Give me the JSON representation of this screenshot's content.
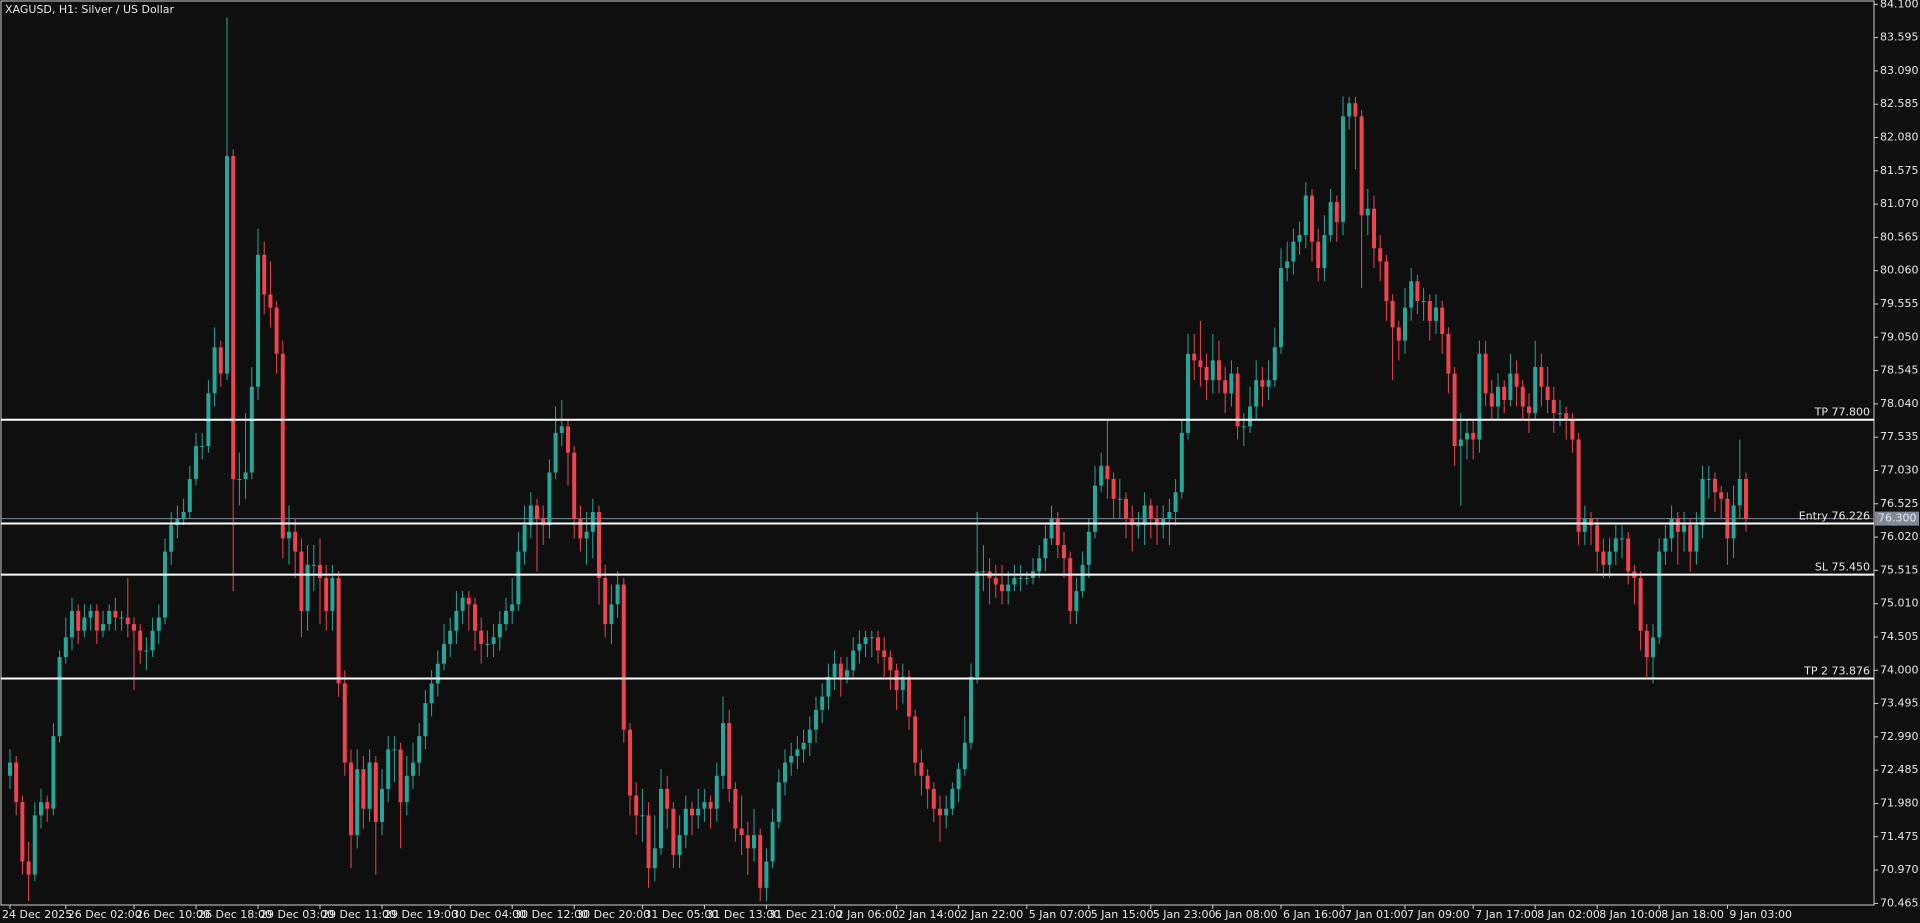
{
  "chart_data": {
    "type": "candlestick",
    "title": "XAGUSD, H1:  Silver / US Dollar",
    "up_color": "#26a69a",
    "down_color": "#ef4350",
    "ylim": [
      70.44,
      84.12
    ],
    "yticks": [
      {
        "value": 84.1,
        "label": "84.100"
      },
      83.595,
      {
        "value": 83.09,
        "label": "83.090"
      },
      82.585,
      {
        "value": 82.08,
        "label": "82.080"
      },
      81.575,
      {
        "value": 81.07,
        "label": "81.070"
      },
      80.565,
      {
        "value": 80.06,
        "label": "80.060"
      },
      79.555,
      {
        "value": 79.05,
        "label": "79.050"
      },
      78.545,
      {
        "value": 78.04,
        "label": "78.040"
      },
      77.535,
      {
        "value": 77.03,
        "label": "77.030"
      },
      76.525,
      {
        "value": 76.02,
        "label": "76.020"
      },
      75.515,
      {
        "value": 75.01,
        "label": "75.010"
      },
      74.505,
      {
        "value": 74.0,
        "label": "74.000"
      },
      73.495,
      {
        "value": 72.99,
        "label": "72.990"
      },
      72.485,
      {
        "value": 71.98,
        "label": "71.980"
      },
      71.475,
      {
        "value": 70.97,
        "label": "70.970"
      },
      70.465
    ],
    "levels": [
      {
        "name": "TP 77.800",
        "value": 77.8
      },
      {
        "name": "Entry 76.226",
        "value": 76.226
      },
      {
        "name": "SL 75.450",
        "value": 75.45
      },
      {
        "name": "TP 2 73.876",
        "value": 73.876
      }
    ],
    "bid_line": {
      "value": 76.3,
      "label": "76.300"
    },
    "categories": [
      "24 Dec 2025",
      null,
      null,
      null,
      null,
      null,
      null,
      null,
      null,
      "26 Dec 02:00",
      null,
      null,
      null,
      null,
      null,
      null,
      null,
      null,
      null,
      null,
      "26 Dec 10:00",
      null,
      null,
      null,
      null,
      null,
      null,
      null,
      null,
      null,
      "26 Dec 18:00",
      null,
      null,
      null,
      null,
      null,
      null,
      null,
      null,
      null,
      "29 Dec 03:00",
      null,
      null,
      null,
      null,
      null,
      null,
      null,
      null,
      null,
      "29 Dec 11:00",
      null,
      null,
      null,
      null,
      null,
      null,
      null,
      null,
      null,
      "29 Dec 19:00",
      null,
      null,
      null,
      null,
      null,
      null,
      null,
      null,
      null,
      null,
      "30 Dec 04:00",
      null,
      null,
      null,
      null,
      null,
      null,
      null,
      null,
      null,
      "30 Dec 12:00",
      null,
      null,
      null,
      null,
      null,
      null,
      null,
      null,
      null,
      "30 Dec 20:00",
      null,
      null,
      null,
      null,
      null,
      null,
      null,
      null,
      null,
      null,
      "31 Dec 05:00",
      null,
      null,
      null,
      null,
      null,
      null,
      null,
      null,
      null,
      "31 Dec 13:00",
      null,
      null,
      null,
      null,
      null,
      null,
      null,
      null,
      null,
      "31 Dec 21:00",
      null,
      null,
      null,
      null,
      null,
      null,
      null,
      null,
      null,
      null,
      "2 Jan 06:00",
      null,
      null,
      null,
      null,
      null,
      null,
      null,
      null,
      null,
      "2 Jan 14:00",
      null,
      null,
      null,
      null,
      null,
      null,
      null,
      null,
      null,
      "2 Jan 22:00",
      null,
      null,
      null,
      null,
      null,
      null,
      null,
      null,
      null,
      null,
      "5 Jan 07:00",
      null,
      null,
      null,
      null,
      null,
      null,
      null,
      null,
      null,
      "5 Jan 15:00",
      null,
      null,
      null,
      null,
      null,
      null,
      null,
      null,
      null,
      "5 Jan 23:00",
      null,
      null,
      null,
      null,
      null,
      null,
      null,
      null,
      null,
      "6 Jan 08:00",
      null,
      null,
      null,
      null,
      null,
      null,
      null,
      null,
      null,
      null,
      "6 Jan 16:00",
      null,
      null,
      null,
      null,
      null,
      null,
      null,
      null,
      null,
      "7 Jan 01:00",
      null,
      null,
      null,
      null,
      null,
      null,
      null,
      null,
      null,
      "7 Jan 09:00",
      null,
      null,
      null,
      null,
      null,
      null,
      null,
      null,
      null,
      null,
      "7 Jan 17:00",
      null,
      null,
      null,
      null,
      null,
      null,
      null,
      null,
      null,
      "8 Jan 02:00",
      null,
      null,
      null,
      null,
      null,
      null,
      null,
      null,
      null,
      "8 Jan 10:00",
      null,
      null,
      null,
      null,
      null,
      null,
      null,
      null,
      null,
      "8 Jan 18:00",
      null,
      null,
      null,
      null,
      null,
      null,
      null,
      null,
      null,
      null,
      "9 Jan 03:00",
      null,
      null,
      null
    ],
    "open": [
      72.4,
      72.6,
      72.0,
      71.1,
      70.9,
      71.8,
      72.0,
      71.9,
      73.0,
      74.2,
      74.5,
      74.9,
      74.6,
      74.8,
      74.9,
      74.6,
      74.7,
      74.9,
      74.8,
      74.8,
      74.7,
      74.6,
      74.3,
      74.3,
      74.6,
      74.8,
      75.8,
      76.2,
      76.3,
      76.4,
      76.9,
      77.4,
      77.4,
      78.2,
      78.9,
      78.5,
      81.8,
      76.9,
      76.9,
      77.0,
      78.3,
      80.3,
      79.7,
      79.5,
      78.8,
      76.0,
      76.1,
      75.8,
      74.9,
      75.6,
      75.6,
      75.4,
      74.9,
      75.4,
      73.8,
      72.6,
      71.5,
      72.5,
      71.9,
      72.6,
      71.7,
      72.2,
      72.8,
      72.8,
      72.0,
      72.4,
      72.6,
      73.0,
      73.5,
      73.8,
      74.1,
      74.4,
      74.6,
      74.9,
      75.1,
      75.0,
      74.6,
      74.4,
      74.4,
      74.5,
      74.7,
      74.9,
      75.0,
      75.8,
      76.2,
      76.5,
      76.3,
      76.2,
      77.0,
      77.6,
      77.7,
      77.3,
      76.3,
      76.0,
      76.1,
      76.4,
      75.4,
      74.7,
      75.0,
      75.3,
      73.1,
      72.1,
      71.8,
      71.8,
      71.0,
      71.3,
      72.2,
      71.9,
      71.2,
      71.5,
      71.9,
      71.8,
      71.9,
      72.0,
      71.9,
      72.4,
      73.2,
      72.2,
      71.6,
      71.5,
      71.3,
      71.5,
      70.7,
      71.1,
      71.7,
      72.3,
      72.6,
      72.7,
      72.8,
      72.9,
      73.1,
      73.4,
      73.6,
      73.9,
      74.1,
      73.9,
      74.0,
      74.3,
      74.4,
      74.5,
      74.5,
      74.3,
      74.2,
      74.0,
      73.7,
      73.9,
      73.3,
      72.6,
      72.4,
      72.2,
      71.9,
      71.8,
      71.9,
      72.2,
      72.5,
      72.9,
      73.9,
      75.5,
      75.5,
      75.4,
      75.3,
      75.2,
      75.3,
      75.4,
      75.4,
      75.4,
      75.5,
      75.7,
      76.0,
      76.3,
      75.9,
      75.7,
      74.9,
      75.2,
      75.6,
      76.1,
      76.8,
      77.1,
      76.9,
      76.6,
      76.6,
      76.3,
      76.2,
      76.2,
      76.5,
      76.3,
      76.2,
      76.3,
      76.4,
      76.7,
      77.6,
      78.8,
      78.7,
      78.6,
      78.4,
      78.7,
      78.4,
      78.2,
      78.5,
      77.7,
      77.7,
      78.0,
      78.4,
      78.3,
      78.4,
      78.9,
      80.1,
      80.2,
      80.5,
      80.6,
      81.2,
      80.5,
      80.1,
      80.6,
      81.1,
      80.8,
      82.4,
      82.6,
      82.4,
      80.9,
      81.0,
      80.4,
      80.2,
      79.6,
      79.2,
      79.0,
      79.5,
      79.9,
      79.6,
      79.6,
      79.3,
      79.5,
      79.1,
      78.5,
      77.4,
      77.5,
      77.6,
      77.5,
      78.8,
      78.2,
      78.0,
      78.3,
      78.1,
      78.5,
      78.3,
      78.0,
      77.9,
      78.6,
      78.3,
      78.1,
      77.9,
      77.9,
      77.8,
      77.5,
      76.1,
      76.3,
      76.2,
      75.8,
      75.6,
      75.8,
      76.0,
      76.0,
      75.5,
      75.4,
      74.6,
      74.2,
      74.5,
      75.8,
      76.0,
      76.3,
      76.1,
      76.2,
      75.8,
      76.2,
      76.9,
      76.9,
      76.7,
      76.6,
      76.0,
      76.5,
      76.9
    ],
    "high": [
      72.8,
      72.7,
      72.1,
      71.4,
      72.0,
      72.2,
      72.1,
      73.2,
      74.3,
      74.8,
      75.1,
      75.0,
      75.0,
      75.0,
      75.0,
      74.9,
      75.0,
      75.1,
      74.9,
      75.4,
      74.8,
      74.7,
      74.5,
      74.8,
      75.0,
      76.0,
      76.4,
      76.5,
      76.6,
      77.1,
      77.6,
      77.6,
      78.4,
      79.2,
      79.0,
      83.9,
      81.9,
      77.3,
      77.9,
      78.6,
      80.7,
      80.5,
      80.2,
      79.6,
      79.0,
      76.5,
      76.3,
      76.0,
      75.9,
      75.9,
      76.0,
      75.6,
      75.6,
      75.5,
      74.0,
      72.8,
      72.8,
      72.7,
      72.8,
      72.7,
      72.5,
      73.0,
      73.0,
      72.9,
      72.7,
      72.9,
      73.2,
      73.7,
      74.0,
      74.3,
      74.7,
      74.8,
      75.2,
      75.2,
      75.2,
      75.1,
      74.8,
      74.6,
      74.7,
      74.9,
      75.1,
      75.4,
      76.1,
      76.5,
      76.7,
      76.6,
      76.5,
      77.2,
      78.0,
      78.1,
      77.8,
      77.4,
      76.5,
      76.4,
      76.6,
      76.5,
      75.6,
      75.3,
      75.5,
      75.4,
      73.2,
      72.3,
      72.2,
      72.0,
      71.8,
      72.5,
      72.4,
      72.0,
      71.8,
      72.1,
      72.0,
      72.2,
      72.2,
      72.1,
      72.6,
      73.6,
      73.4,
      72.3,
      72.1,
      71.7,
      71.9,
      71.6,
      71.3,
      71.9,
      72.5,
      72.8,
      72.9,
      73.0,
      73.1,
      73.3,
      73.6,
      73.8,
      74.1,
      74.3,
      74.2,
      74.2,
      74.5,
      74.6,
      74.6,
      74.6,
      74.6,
      74.5,
      74.3,
      74.1,
      74.1,
      74.0,
      73.4,
      72.8,
      72.5,
      72.3,
      72.1,
      72.1,
      72.3,
      72.6,
      73.3,
      74.1,
      76.4,
      75.9,
      75.7,
      75.6,
      75.6,
      75.5,
      75.6,
      75.6,
      75.5,
      75.7,
      75.9,
      76.2,
      76.5,
      76.4,
      76.1,
      75.8,
      75.4,
      75.8,
      76.3,
      77.1,
      77.3,
      77.8,
      77.0,
      76.9,
      76.7,
      76.5,
      76.4,
      76.7,
      76.6,
      76.5,
      76.5,
      76.6,
      76.9,
      77.8,
      79.1,
      79.1,
      79.3,
      78.8,
      79.1,
      79.0,
      78.6,
      78.7,
      78.6,
      77.9,
      78.3,
      78.7,
      78.6,
      78.7,
      79.2,
      80.4,
      80.5,
      80.7,
      80.8,
      81.4,
      81.3,
      80.7,
      80.9,
      81.3,
      81.2,
      82.7,
      82.7,
      82.7,
      82.5,
      81.3,
      81.2,
      80.6,
      80.3,
      79.7,
      79.3,
      79.8,
      80.1,
      80.0,
      79.8,
      79.7,
      79.7,
      79.6,
      79.2,
      78.6,
      77.9,
      77.8,
      77.8,
      79.0,
      79.0,
      78.4,
      78.5,
      78.4,
      78.8,
      78.7,
      78.4,
      78.2,
      79.0,
      78.8,
      78.6,
      78.3,
      78.1,
      78.0,
      77.9,
      77.6,
      76.5,
      76.4,
      76.3,
      76.0,
      76.0,
      76.2,
      76.2,
      76.1,
      75.6,
      75.5,
      74.7,
      74.7,
      76.0,
      76.2,
      76.5,
      76.4,
      76.4,
      76.3,
      76.4,
      77.1,
      77.1,
      77.0,
      76.8,
      76.7,
      76.8,
      77.5,
      77.0
    ],
    "low": [
      72.2,
      71.8,
      70.9,
      70.5,
      70.8,
      71.6,
      71.7,
      71.8,
      72.9,
      74.1,
      74.3,
      74.4,
      74.5,
      74.6,
      74.4,
      74.5,
      74.6,
      74.6,
      74.6,
      74.5,
      73.7,
      74.1,
      74.0,
      74.2,
      74.4,
      74.7,
      75.6,
      76.0,
      76.2,
      76.3,
      76.8,
      77.2,
      77.3,
      78.0,
      78.3,
      78.4,
      75.2,
      76.5,
      76.6,
      76.9,
      78.1,
      79.4,
      79.2,
      78.5,
      75.7,
      75.6,
      75.4,
      74.5,
      74.6,
      75.2,
      74.7,
      74.6,
      74.6,
      73.6,
      72.4,
      71.0,
      71.3,
      71.6,
      71.7,
      70.9,
      71.5,
      72.0,
      72.3,
      71.3,
      71.8,
      72.2,
      72.4,
      72.8,
      73.3,
      73.6,
      74.0,
      74.2,
      74.4,
      74.7,
      74.6,
      74.3,
      74.1,
      74.2,
      74.2,
      74.3,
      74.6,
      74.7,
      74.9,
      75.6,
      76.0,
      75.5,
      75.9,
      76.0,
      76.9,
      77.4,
      76.8,
      76.0,
      75.8,
      75.6,
      75.7,
      75.0,
      74.5,
      74.4,
      74.8,
      72.9,
      71.8,
      71.5,
      71.4,
      70.7,
      70.8,
      71.2,
      71.6,
      71.0,
      71.0,
      71.3,
      71.5,
      71.6,
      71.7,
      71.6,
      71.7,
      72.2,
      72.0,
      71.4,
      71.2,
      70.9,
      71.1,
      70.5,
      70.5,
      71.0,
      71.6,
      72.1,
      72.4,
      72.5,
      72.6,
      72.7,
      72.9,
      73.2,
      73.4,
      73.7,
      73.6,
      73.8,
      73.9,
      74.1,
      74.2,
      74.2,
      74.1,
      73.9,
      73.7,
      73.4,
      73.5,
      73.1,
      72.4,
      72.1,
      71.9,
      71.7,
      71.4,
      71.6,
      71.8,
      72.0,
      72.4,
      72.8,
      73.8,
      75.2,
      75.0,
      75.1,
      75.0,
      75.0,
      75.2,
      75.2,
      75.3,
      75.3,
      75.4,
      75.5,
      75.9,
      75.7,
      75.4,
      74.7,
      74.7,
      75.1,
      75.4,
      76.0,
      76.7,
      76.6,
      76.3,
      76.3,
      76.0,
      75.8,
      76.0,
      75.9,
      76.0,
      75.9,
      76.0,
      75.9,
      76.2,
      76.6,
      77.5,
      78.4,
      78.3,
      78.1,
      78.2,
      78.2,
      77.9,
      78.0,
      77.5,
      77.4,
      77.6,
      77.8,
      78.0,
      78.1,
      78.3,
      78.8,
      79.9,
      80.0,
      80.3,
      80.4,
      80.2,
      79.9,
      79.9,
      80.5,
      80.5,
      80.6,
      82.2,
      81.6,
      79.8,
      80.6,
      80.1,
      79.9,
      79.3,
      78.4,
      78.7,
      78.8,
      79.3,
      79.4,
      79.3,
      79.0,
      79.1,
      78.8,
      78.2,
      77.1,
      76.5,
      77.2,
      77.2,
      77.3,
      78.0,
      77.8,
      77.8,
      77.9,
      78.0,
      78.0,
      77.8,
      77.6,
      77.8,
      78.0,
      77.9,
      77.6,
      77.7,
      77.5,
      77.3,
      75.9,
      75.9,
      75.9,
      75.5,
      75.4,
      75.4,
      75.6,
      75.7,
      75.3,
      75.0,
      74.3,
      73.9,
      73.8,
      74.4,
      75.6,
      75.8,
      75.6,
      75.8,
      75.5,
      75.6,
      76.0,
      76.6,
      76.4,
      76.3,
      75.6,
      75.7,
      76.3,
      76.1
    ],
    "close": [
      72.6,
      72.0,
      71.1,
      70.9,
      71.8,
      72.0,
      71.9,
      73.0,
      74.2,
      74.5,
      74.9,
      74.6,
      74.8,
      74.9,
      74.6,
      74.7,
      74.9,
      74.8,
      74.8,
      74.7,
      74.6,
      74.3,
      74.3,
      74.6,
      74.8,
      75.8,
      76.2,
      76.3,
      76.4,
      76.9,
      77.4,
      77.4,
      78.2,
      78.9,
      78.5,
      81.8,
      76.9,
      76.9,
      77.0,
      78.3,
      80.3,
      79.7,
      79.5,
      78.8,
      76.0,
      76.1,
      75.8,
      74.9,
      75.6,
      75.6,
      75.4,
      74.9,
      75.4,
      73.8,
      72.6,
      71.5,
      72.5,
      71.9,
      72.6,
      71.7,
      72.2,
      72.8,
      72.8,
      72.0,
      72.4,
      72.6,
      73.0,
      73.5,
      73.8,
      74.1,
      74.4,
      74.6,
      74.9,
      75.1,
      75.0,
      74.6,
      74.4,
      74.4,
      74.5,
      74.7,
      74.9,
      75.0,
      75.8,
      76.2,
      76.5,
      76.3,
      76.2,
      77.0,
      77.6,
      77.7,
      77.3,
      76.3,
      76.0,
      76.1,
      76.4,
      75.4,
      74.7,
      75.0,
      75.3,
      73.1,
      72.1,
      71.8,
      71.8,
      71.0,
      71.3,
      72.2,
      71.9,
      71.2,
      71.5,
      71.9,
      71.8,
      71.9,
      72.0,
      71.9,
      72.4,
      73.2,
      72.2,
      71.6,
      71.5,
      71.3,
      71.5,
      70.7,
      71.1,
      71.7,
      72.3,
      72.6,
      72.7,
      72.8,
      72.9,
      73.1,
      73.4,
      73.6,
      73.9,
      74.1,
      73.9,
      74.0,
      74.3,
      74.4,
      74.5,
      74.5,
      74.3,
      74.2,
      74.0,
      73.7,
      73.9,
      73.3,
      72.6,
      72.4,
      72.2,
      71.9,
      71.8,
      71.9,
      72.2,
      72.5,
      72.9,
      73.9,
      75.5,
      75.5,
      75.4,
      75.3,
      75.2,
      75.3,
      75.4,
      75.4,
      75.4,
      75.5,
      75.7,
      76.0,
      76.3,
      75.9,
      75.7,
      74.9,
      75.2,
      75.6,
      76.1,
      76.8,
      77.1,
      76.9,
      76.6,
      76.6,
      76.3,
      76.2,
      76.2,
      76.5,
      76.3,
      76.2,
      76.3,
      76.4,
      76.7,
      77.6,
      78.8,
      78.7,
      78.6,
      78.4,
      78.7,
      78.4,
      78.2,
      78.5,
      77.7,
      77.7,
      78.0,
      78.4,
      78.3,
      78.4,
      78.9,
      80.1,
      80.2,
      80.5,
      80.6,
      81.2,
      80.5,
      80.1,
      80.6,
      81.1,
      80.8,
      82.4,
      82.6,
      82.4,
      80.9,
      81.0,
      80.4,
      80.2,
      79.6,
      79.2,
      79.0,
      79.5,
      79.9,
      79.6,
      79.6,
      79.3,
      79.5,
      79.1,
      78.5,
      77.4,
      77.5,
      77.6,
      77.5,
      78.8,
      78.2,
      78.0,
      78.3,
      78.1,
      78.5,
      78.3,
      78.0,
      77.9,
      78.6,
      78.3,
      78.1,
      77.9,
      77.9,
      77.8,
      77.5,
      76.1,
      76.3,
      76.2,
      75.8,
      75.6,
      75.8,
      76.0,
      76.0,
      75.5,
      75.4,
      74.6,
      74.2,
      74.5,
      75.8,
      76.0,
      76.3,
      76.1,
      76.2,
      75.8,
      76.2,
      76.9,
      76.9,
      76.7,
      76.6,
      76.0,
      76.5,
      76.9,
      76.3
    ]
  }
}
